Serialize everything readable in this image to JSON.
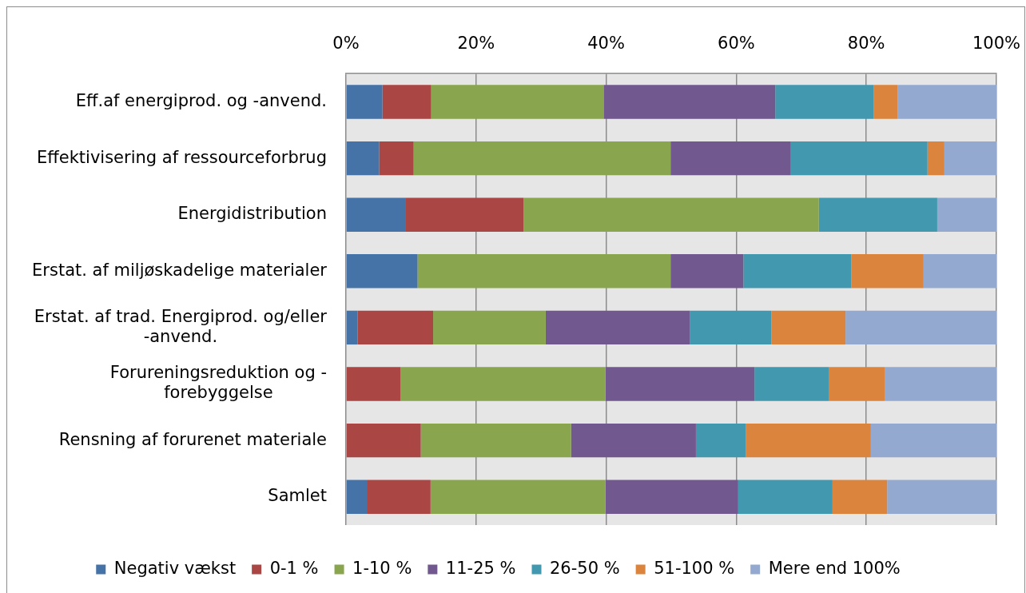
{
  "chart_data": {
    "type": "bar",
    "orientation": "horizontal",
    "stacked": true,
    "categories": [
      "Eff.af energiprod. og -anvend.",
      "Effektivisering af ressourceforbrug",
      "Energidistribution",
      "Erstat. af miljøskadelige materialer",
      "Erstat. af trad. Energiprod. og/eller -anvend.",
      "Forureningsreduktion og - forebyggelse",
      "Rensning af forurenet materiale",
      "Samlet"
    ],
    "series": [
      {
        "name": "Negativ vækst",
        "color": "#4572a7",
        "values": [
          5.6,
          5.1,
          9.1,
          11.0,
          1.8,
          0,
          0,
          3.2
        ]
      },
      {
        "name": "0-1 %",
        "color": "#aa4643",
        "values": [
          7.5,
          5.3,
          18.2,
          0,
          11.6,
          8.4,
          11.5,
          9.8
        ]
      },
      {
        "name": "1-10 %",
        "color": "#89a54e",
        "values": [
          26.5,
          39.5,
          45.4,
          38.9,
          17.3,
          31.5,
          23.1,
          26.9
        ]
      },
      {
        "name": "11-25 %",
        "color": "#71588f",
        "values": [
          26.4,
          18.5,
          0,
          11.2,
          22.2,
          22.9,
          19.2,
          20.4
        ]
      },
      {
        "name": "26-50 %",
        "color": "#4198af",
        "values": [
          15.1,
          21.0,
          18.2,
          16.6,
          12.5,
          11.4,
          7.7,
          14.5
        ]
      },
      {
        "name": "51-100 %",
        "color": "#db843d",
        "values": [
          3.7,
          2.6,
          0,
          11.1,
          11.4,
          8.6,
          19.2,
          8.4
        ]
      },
      {
        "name": "Mere end 100%",
        "color": "#93a9cf",
        "values": [
          15.2,
          8.0,
          9.1,
          11.2,
          23.2,
          17.2,
          19.3,
          16.8
        ]
      }
    ],
    "xlim": [
      0,
      100
    ],
    "xticks": [
      {
        "value": 0,
        "label": "0%"
      },
      {
        "value": 20,
        "label": "20%"
      },
      {
        "value": 40,
        "label": "40%"
      },
      {
        "value": 60,
        "label": "60%"
      },
      {
        "value": 80,
        "label": "80%"
      },
      {
        "value": 100,
        "label": "100%"
      }
    ],
    "grid": "x",
    "legend": "bottom"
  }
}
